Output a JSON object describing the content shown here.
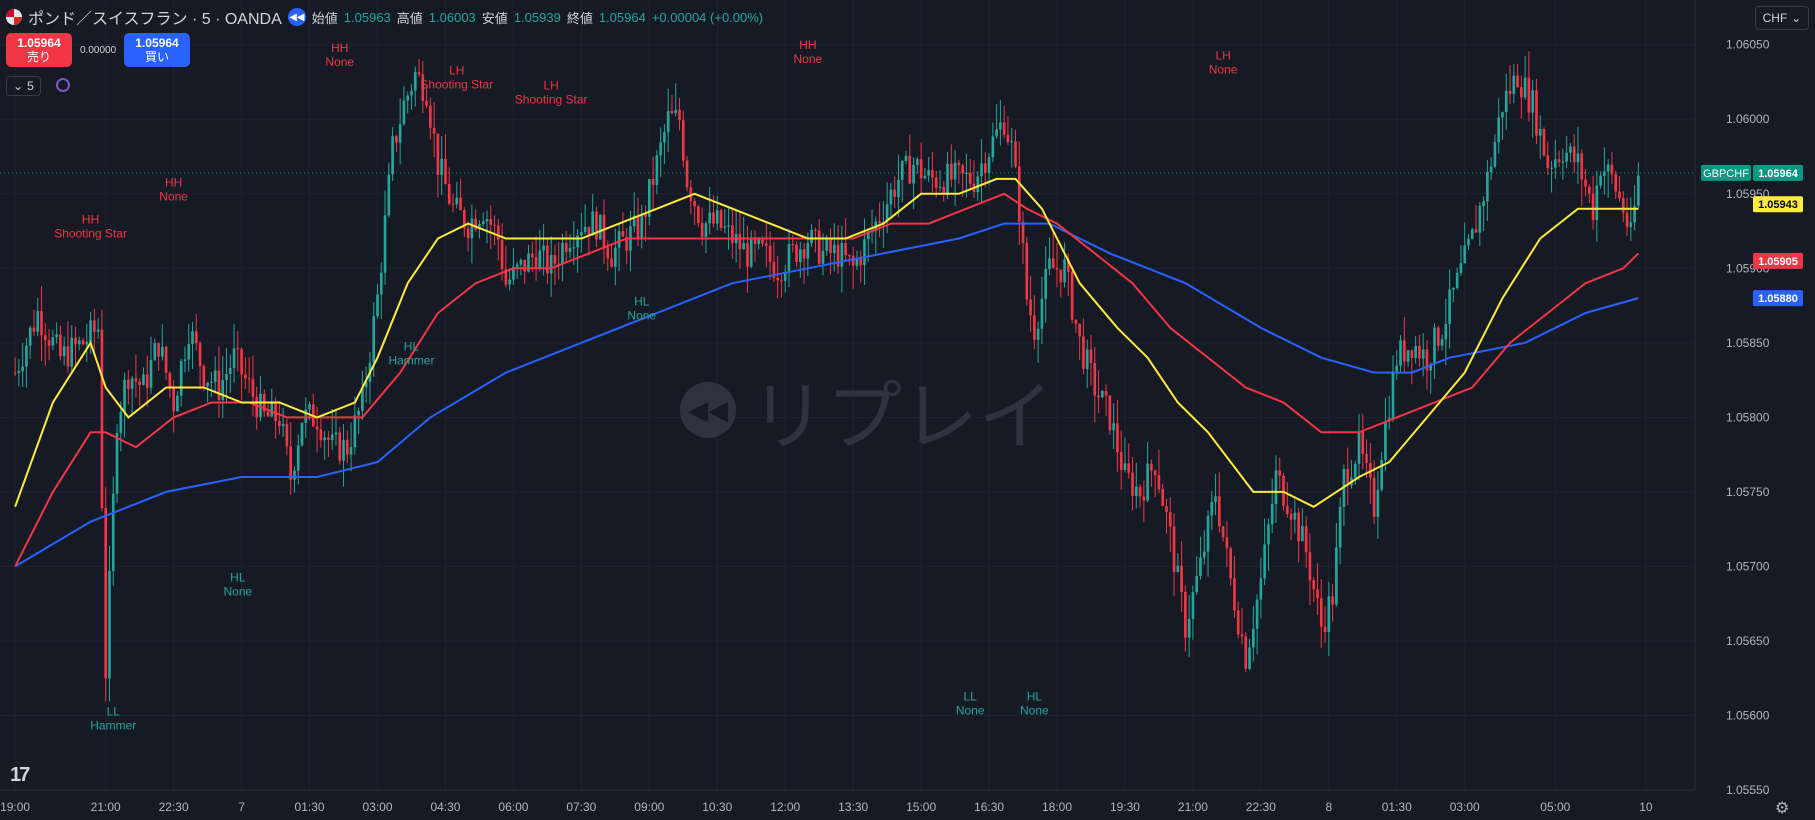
{
  "header": {
    "symbol_title": "ポンド／スイスフラン · 5 · OANDA",
    "symbol_icon": "gbp-chf-flag-icon",
    "replay_icon": "replay-icon",
    "ohlc": [
      {
        "label": "始値",
        "value": "1.05963"
      },
      {
        "label": "高値",
        "value": "1.06003"
      },
      {
        "label": "安値",
        "value": "1.05939"
      },
      {
        "label": "終値",
        "value": "1.05964"
      }
    ],
    "change": "+0.00004 (+0.00%)",
    "change_color": "#26a69a"
  },
  "trade": {
    "sell_price": "1.05964",
    "sell_label": "売り",
    "spread": "0.00000",
    "buy_price": "1.05964",
    "buy_label": "買い"
  },
  "interval_control": {
    "icon": "chevron-down-icon",
    "value": "5"
  },
  "currency_selector": {
    "value": "CHF",
    "icon": "chevron-down-icon"
  },
  "watermark": {
    "text": "リプレイ",
    "icon": "rewind-icon"
  },
  "colors": {
    "background": "#161a25",
    "up": "#26a69a",
    "down": "#f23645",
    "ma_fast": "#ffeb3b",
    "ma_mid": "#f23645",
    "ma_slow": "#2962ff",
    "label_high": "#f23645",
    "label_low": "#26a69a"
  },
  "chart_data": {
    "type": "candlestick",
    "symbol": "GBPCHF",
    "ylim": [
      1.0555,
      1.0608
    ],
    "y_ticks": [
      "1.06050",
      "1.06000",
      "1.05950",
      "1.05900",
      "1.05850",
      "1.05800",
      "1.05750",
      "1.05700",
      "1.05650",
      "1.05600",
      "1.05550"
    ],
    "x_ticks": [
      {
        "label": "19:00",
        "t": 0
      },
      {
        "label": "21:00",
        "t": 24
      },
      {
        "label": "22:30",
        "t": 42
      },
      {
        "label": "7",
        "t": 60
      },
      {
        "label": "01:30",
        "t": 78
      },
      {
        "label": "03:00",
        "t": 96
      },
      {
        "label": "04:30",
        "t": 114
      },
      {
        "label": "06:00",
        "t": 132
      },
      {
        "label": "07:30",
        "t": 150
      },
      {
        "label": "09:00",
        "t": 168
      },
      {
        "label": "10:30",
        "t": 186
      },
      {
        "label": "12:00",
        "t": 204
      },
      {
        "label": "13:30",
        "t": 222
      },
      {
        "label": "15:00",
        "t": 240
      },
      {
        "label": "16:30",
        "t": 258
      },
      {
        "label": "18:00",
        "t": 276
      },
      {
        "label": "19:30",
        "t": 294
      },
      {
        "label": "21:00",
        "t": 312
      },
      {
        "label": "22:30",
        "t": 330
      },
      {
        "label": "8",
        "t": 348
      },
      {
        "label": "01:30",
        "t": 366
      },
      {
        "label": "03:00",
        "t": 384
      },
      {
        "label": "05:00",
        "t": 408
      },
      {
        "label": "10",
        "t": 432
      }
    ],
    "x_range": [
      -4,
      445
    ],
    "price_path": [
      [
        0,
        1.0583
      ],
      [
        6,
        1.0587
      ],
      [
        12,
        1.0584
      ],
      [
        18,
        1.0585
      ],
      [
        22,
        1.0586
      ],
      [
        24,
        1.0563
      ],
      [
        27,
        1.058
      ],
      [
        30,
        1.0583
      ],
      [
        34,
        1.0582
      ],
      [
        38,
        1.0585
      ],
      [
        42,
        1.0581
      ],
      [
        46,
        1.0586
      ],
      [
        50,
        1.0583
      ],
      [
        54,
        1.0582
      ],
      [
        58,
        1.0584
      ],
      [
        62,
        1.0582
      ],
      [
        66,
        1.058
      ],
      [
        70,
        1.058
      ],
      [
        73,
        1.0576
      ],
      [
        76,
        1.058
      ],
      [
        80,
        1.058
      ],
      [
        84,
        1.0578
      ],
      [
        88,
        1.0578
      ],
      [
        92,
        1.0581
      ],
      [
        96,
        1.0588
      ],
      [
        100,
        1.0598
      ],
      [
        103,
        1.0601
      ],
      [
        106,
        1.0603
      ],
      [
        109,
        1.0602
      ],
      [
        112,
        1.0597
      ],
      [
        116,
        1.0594
      ],
      [
        120,
        1.0593
      ],
      [
        124,
        1.0594
      ],
      [
        128,
        1.0592
      ],
      [
        130,
        1.0589
      ],
      [
        134,
        1.059
      ],
      [
        138,
        1.0591
      ],
      [
        142,
        1.059
      ],
      [
        146,
        1.0592
      ],
      [
        150,
        1.0593
      ],
      [
        154,
        1.0593
      ],
      [
        158,
        1.0591
      ],
      [
        162,
        1.0592
      ],
      [
        166,
        1.0593
      ],
      [
        170,
        1.0597
      ],
      [
        173,
        1.06
      ],
      [
        176,
        1.06
      ],
      [
        178,
        1.0596
      ],
      [
        182,
        1.0593
      ],
      [
        186,
        1.0593
      ],
      [
        190,
        1.0592
      ],
      [
        194,
        1.0591
      ],
      [
        198,
        1.0591
      ],
      [
        202,
        1.059
      ],
      [
        206,
        1.0591
      ],
      [
        210,
        1.0592
      ],
      [
        214,
        1.0591
      ],
      [
        218,
        1.0591
      ],
      [
        222,
        1.059
      ],
      [
        226,
        1.0592
      ],
      [
        230,
        1.0594
      ],
      [
        234,
        1.0596
      ],
      [
        238,
        1.0597
      ],
      [
        242,
        1.0596
      ],
      [
        246,
        1.0596
      ],
      [
        250,
        1.0596
      ],
      [
        254,
        1.0596
      ],
      [
        258,
        1.0598
      ],
      [
        262,
        1.06
      ],
      [
        264,
        1.0598
      ],
      [
        266,
        1.0594
      ],
      [
        268,
        1.0588
      ],
      [
        270,
        1.0586
      ],
      [
        274,
        1.059
      ],
      [
        278,
        1.059
      ],
      [
        282,
        1.0585
      ],
      [
        286,
        1.0582
      ],
      [
        290,
        1.058
      ],
      [
        294,
        1.0576
      ],
      [
        298,
        1.0575
      ],
      [
        302,
        1.0577
      ],
      [
        306,
        1.0572
      ],
      [
        310,
        1.0566
      ],
      [
        314,
        1.057
      ],
      [
        318,
        1.0575
      ],
      [
        322,
        1.0569
      ],
      [
        326,
        1.0564
      ],
      [
        330,
        1.0569
      ],
      [
        334,
        1.0576
      ],
      [
        338,
        1.0574
      ],
      [
        342,
        1.0571
      ],
      [
        346,
        1.0566
      ],
      [
        349,
        1.0568
      ],
      [
        352,
        1.0576
      ],
      [
        356,
        1.0578
      ],
      [
        360,
        1.0574
      ],
      [
        362,
        1.0578
      ],
      [
        366,
        1.0584
      ],
      [
        370,
        1.0585
      ],
      [
        374,
        1.0584
      ],
      [
        378,
        1.0586
      ],
      [
        382,
        1.0589
      ],
      [
        386,
        1.0592
      ],
      [
        390,
        1.0596
      ],
      [
        394,
        1.0601
      ],
      [
        398,
        1.0603
      ],
      [
        402,
        1.0601
      ],
      [
        406,
        1.0597
      ],
      [
        410,
        1.0598
      ],
      [
        414,
        1.0597
      ],
      [
        418,
        1.0594
      ],
      [
        420,
        1.0597
      ],
      [
        423,
        1.0596
      ],
      [
        426,
        1.0594
      ],
      [
        428,
        1.0592
      ],
      [
        430,
        1.0596
      ]
    ],
    "ma_fast_path": [
      [
        0,
        1.0574
      ],
      [
        10,
        1.0581
      ],
      [
        20,
        1.0585
      ],
      [
        24,
        1.0582
      ],
      [
        30,
        1.058
      ],
      [
        40,
        1.0582
      ],
      [
        50,
        1.0582
      ],
      [
        60,
        1.0581
      ],
      [
        70,
        1.0581
      ],
      [
        80,
        1.058
      ],
      [
        90,
        1.0581
      ],
      [
        96,
        1.0584
      ],
      [
        104,
        1.0589
      ],
      [
        112,
        1.0592
      ],
      [
        120,
        1.0593
      ],
      [
        130,
        1.0592
      ],
      [
        140,
        1.0592
      ],
      [
        150,
        1.0592
      ],
      [
        160,
        1.0593
      ],
      [
        170,
        1.0594
      ],
      [
        180,
        1.0595
      ],
      [
        190,
        1.0594
      ],
      [
        200,
        1.0593
      ],
      [
        210,
        1.0592
      ],
      [
        220,
        1.0592
      ],
      [
        230,
        1.0593
      ],
      [
        240,
        1.0595
      ],
      [
        250,
        1.0595
      ],
      [
        260,
        1.0596
      ],
      [
        265,
        1.0596
      ],
      [
        272,
        1.0594
      ],
      [
        282,
        1.0589
      ],
      [
        292,
        1.0586
      ],
      [
        300,
        1.0584
      ],
      [
        308,
        1.0581
      ],
      [
        316,
        1.0579
      ],
      [
        322,
        1.0577
      ],
      [
        328,
        1.0575
      ],
      [
        336,
        1.0575
      ],
      [
        344,
        1.0574
      ],
      [
        350,
        1.0575
      ],
      [
        356,
        1.0576
      ],
      [
        364,
        1.0577
      ],
      [
        374,
        1.058
      ],
      [
        384,
        1.0583
      ],
      [
        394,
        1.0588
      ],
      [
        404,
        1.0592
      ],
      [
        414,
        1.0594
      ],
      [
        424,
        1.0594
      ],
      [
        430,
        1.0594
      ]
    ],
    "ma_mid_path": [
      [
        0,
        1.057
      ],
      [
        10,
        1.0575
      ],
      [
        20,
        1.0579
      ],
      [
        24,
        1.0579
      ],
      [
        32,
        1.0578
      ],
      [
        42,
        1.058
      ],
      [
        52,
        1.0581
      ],
      [
        62,
        1.0581
      ],
      [
        72,
        1.058
      ],
      [
        82,
        1.058
      ],
      [
        92,
        1.058
      ],
      [
        102,
        1.0583
      ],
      [
        112,
        1.0587
      ],
      [
        122,
        1.0589
      ],
      [
        132,
        1.059
      ],
      [
        142,
        1.059
      ],
      [
        152,
        1.0591
      ],
      [
        162,
        1.0592
      ],
      [
        172,
        1.0592
      ],
      [
        182,
        1.0592
      ],
      [
        192,
        1.0592
      ],
      [
        202,
        1.0592
      ],
      [
        212,
        1.0592
      ],
      [
        222,
        1.0592
      ],
      [
        232,
        1.0593
      ],
      [
        242,
        1.0593
      ],
      [
        252,
        1.0594
      ],
      [
        262,
        1.0595
      ],
      [
        268,
        1.0594
      ],
      [
        276,
        1.0593
      ],
      [
        286,
        1.0591
      ],
      [
        296,
        1.0589
      ],
      [
        306,
        1.0586
      ],
      [
        316,
        1.0584
      ],
      [
        326,
        1.0582
      ],
      [
        336,
        1.0581
      ],
      [
        346,
        1.0579
      ],
      [
        356,
        1.0579
      ],
      [
        366,
        1.058
      ],
      [
        376,
        1.0581
      ],
      [
        386,
        1.0582
      ],
      [
        396,
        1.0585
      ],
      [
        406,
        1.0587
      ],
      [
        416,
        1.0589
      ],
      [
        426,
        1.059
      ],
      [
        430,
        1.0591
      ]
    ],
    "ma_slow_path": [
      [
        0,
        1.057
      ],
      [
        20,
        1.0573
      ],
      [
        40,
        1.0575
      ],
      [
        60,
        1.0576
      ],
      [
        80,
        1.0576
      ],
      [
        96,
        1.0577
      ],
      [
        110,
        1.058
      ],
      [
        130,
        1.0583
      ],
      [
        150,
        1.0585
      ],
      [
        170,
        1.0587
      ],
      [
        190,
        1.0589
      ],
      [
        210,
        1.059
      ],
      [
        230,
        1.0591
      ],
      [
        250,
        1.0592
      ],
      [
        262,
        1.0593
      ],
      [
        274,
        1.0593
      ],
      [
        290,
        1.0591
      ],
      [
        310,
        1.0589
      ],
      [
        330,
        1.0586
      ],
      [
        346,
        1.0584
      ],
      [
        360,
        1.0583
      ],
      [
        370,
        1.0583
      ],
      [
        380,
        1.0584
      ],
      [
        400,
        1.0585
      ],
      [
        416,
        1.0587
      ],
      [
        430,
        1.0588
      ]
    ],
    "price_badges": [
      {
        "label": "GBPCHF",
        "value": "1.05964",
        "price": 1.05964,
        "color": "#089981"
      },
      {
        "label": "",
        "value": "1.05943",
        "price": 1.05943,
        "color": "#ffeb3b"
      },
      {
        "label": "",
        "value": "1.05905",
        "price": 1.05905,
        "color": "#f23645"
      },
      {
        "label": "",
        "value": "1.05880",
        "price": 1.0588,
        "color": "#2962ff"
      }
    ],
    "swing_labels": [
      {
        "t": 20,
        "price": 1.0593,
        "lines": [
          "HH",
          "Shooting Star"
        ],
        "kind": "high"
      },
      {
        "t": 42,
        "price": 1.05955,
        "lines": [
          "HH",
          "None"
        ],
        "kind": "high"
      },
      {
        "t": 86,
        "price": 1.06045,
        "lines": [
          "HH",
          "None"
        ],
        "kind": "high"
      },
      {
        "t": 117,
        "price": 1.0603,
        "lines": [
          "LH",
          "Shooting Star"
        ],
        "kind": "high"
      },
      {
        "t": 142,
        "price": 1.0602,
        "lines": [
          "LH",
          "Shooting Star"
        ],
        "kind": "high"
      },
      {
        "t": 210,
        "price": 1.06047,
        "lines": [
          "HH",
          "None"
        ],
        "kind": "high"
      },
      {
        "t": 320,
        "price": 1.0604,
        "lines": [
          "LH",
          "None"
        ],
        "kind": "high"
      },
      {
        "t": 26,
        "price": 1.056,
        "lines": [
          "LL",
          "Hammer"
        ],
        "kind": "low"
      },
      {
        "t": 59,
        "price": 1.0569,
        "lines": [
          "HL",
          "None"
        ],
        "kind": "low"
      },
      {
        "t": 105,
        "price": 1.05845,
        "lines": [
          "HL",
          "Hammer"
        ],
        "kind": "low"
      },
      {
        "t": 166,
        "price": 1.05875,
        "lines": [
          "HL",
          "None"
        ],
        "kind": "low"
      },
      {
        "t": 253,
        "price": 1.0561,
        "lines": [
          "LL",
          "None"
        ],
        "kind": "low"
      },
      {
        "t": 270,
        "price": 1.0561,
        "lines": [
          "HL",
          "None"
        ],
        "kind": "low"
      }
    ]
  }
}
